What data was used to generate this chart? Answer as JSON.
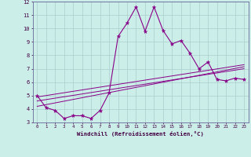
{
  "title": "",
  "xlabel": "Windchill (Refroidissement éolien,°C)",
  "xlim": [
    -0.5,
    23.5
  ],
  "ylim": [
    3,
    12
  ],
  "yticks": [
    3,
    4,
    5,
    6,
    7,
    8,
    9,
    10,
    11,
    12
  ],
  "xticks": [
    0,
    1,
    2,
    3,
    4,
    5,
    6,
    7,
    8,
    9,
    10,
    11,
    12,
    13,
    14,
    15,
    16,
    17,
    18,
    19,
    20,
    21,
    22,
    23
  ],
  "background_color": "#cceee8",
  "grid_color": "#aacccc",
  "line_color": "#880088",
  "line1_x": [
    0,
    1,
    2,
    3,
    4,
    5,
    6,
    7,
    8,
    9,
    10,
    11,
    12,
    13,
    14,
    15,
    16,
    17,
    18,
    19,
    20,
    21,
    22,
    23
  ],
  "line1_y": [
    5.0,
    4.1,
    3.9,
    3.3,
    3.5,
    3.5,
    3.3,
    3.9,
    5.2,
    9.4,
    10.4,
    11.6,
    9.8,
    11.6,
    9.85,
    8.85,
    9.1,
    8.15,
    7.0,
    7.5,
    6.2,
    6.1,
    6.3,
    6.2
  ],
  "line2_x": [
    0,
    23
  ],
  "line2_y": [
    4.6,
    7.0
  ],
  "line3_x": [
    0,
    23
  ],
  "line3_y": [
    4.2,
    7.15
  ],
  "line4_x": [
    0,
    23
  ],
  "line4_y": [
    4.9,
    7.3
  ]
}
